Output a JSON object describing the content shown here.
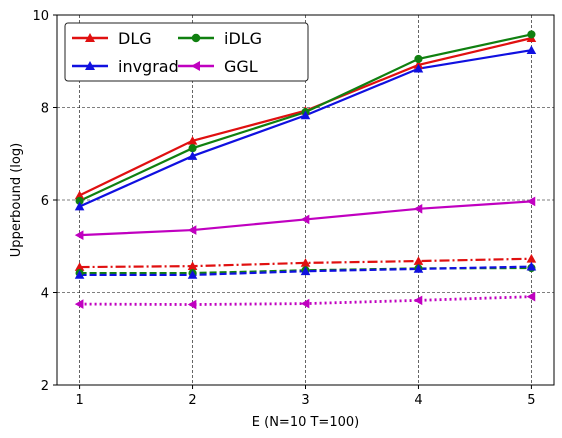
{
  "chart_data": {
    "type": "line",
    "xlabel": "E (N=10 T=100)",
    "ylabel": "Upperbound (log)",
    "x": [
      1,
      2,
      3,
      4,
      5
    ],
    "xticks": [
      "1",
      "2",
      "3",
      "4",
      "5"
    ],
    "xlim": [
      0.8,
      5.2
    ],
    "ylim": [
      2,
      10
    ],
    "yticks": [
      "2",
      "4",
      "6",
      "8",
      "10"
    ],
    "grid": true,
    "legend_placement": "top-left",
    "series": [
      {
        "name": "DLG",
        "color": "#e01010",
        "marker": "triangle-up",
        "line": "solid",
        "values": [
          6.1,
          7.28,
          7.93,
          8.92,
          9.5
        ]
      },
      {
        "name": "iDLG",
        "color": "#108010",
        "marker": "circle",
        "line": "solid",
        "values": [
          5.98,
          7.12,
          7.9,
          9.05,
          9.58
        ]
      },
      {
        "name": "invgrad",
        "color": "#1010e0",
        "marker": "triangle-up",
        "line": "solid",
        "values": [
          5.86,
          6.95,
          7.83,
          8.84,
          9.24
        ]
      },
      {
        "name": "GGL",
        "color": "#c000c0",
        "marker": "triangle-left",
        "line": "solid",
        "values": [
          5.24,
          5.35,
          5.58,
          5.81,
          5.97
        ]
      },
      {
        "color": "#e01010",
        "marker": "triangle-up",
        "line": "dashdot",
        "values": [
          4.55,
          4.57,
          4.64,
          4.68,
          4.73
        ]
      },
      {
        "color": "#108010",
        "marker": "circle",
        "line": "dashed",
        "values": [
          4.42,
          4.42,
          4.48,
          4.52,
          4.53
        ]
      },
      {
        "color": "#1010e0",
        "marker": "triangle-up",
        "line": "dashed",
        "values": [
          4.38,
          4.38,
          4.46,
          4.51,
          4.56
        ]
      },
      {
        "color": "#c000c0",
        "marker": "triangle-left",
        "line": "dotted",
        "values": [
          3.75,
          3.74,
          3.76,
          3.83,
          3.91
        ]
      }
    ]
  }
}
